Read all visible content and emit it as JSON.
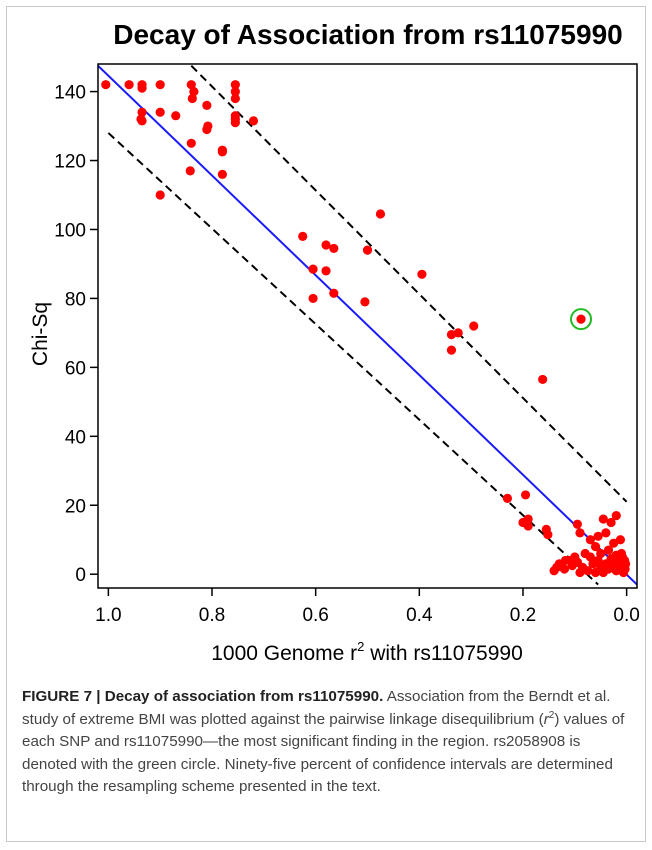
{
  "chart_data": {
    "type": "scatter",
    "title": "Decay of Association from rs11075990",
    "xlabel": "1000 Genome r",
    "xlabel_sup": "2",
    "xlabel_suffix": " with rs11075990",
    "ylabel": "Chi-Sq",
    "xlim": [
      1.02,
      -0.02
    ],
    "ylim": [
      -4,
      148
    ],
    "x_ticks": [
      1.0,
      0.8,
      0.6,
      0.4,
      0.2,
      0.0
    ],
    "x_tick_labels": [
      "1.0",
      "0.8",
      "0.6",
      "0.4",
      "0.2",
      "0.0"
    ],
    "y_ticks": [
      0,
      20,
      40,
      60,
      80,
      100,
      120,
      140
    ],
    "y_tick_labels": [
      "0",
      "20",
      "40",
      "60",
      "80",
      "100",
      "120",
      "140"
    ],
    "reference_line": {
      "x1": 1.02,
      "y1": 147.5,
      "x2": -0.02,
      "y2": -3,
      "color": "#1a1aff"
    },
    "ci_upper": {
      "x1": 0.84,
      "y1": 147.5,
      "x2": 0.0,
      "y2": 21,
      "color": "#000000"
    },
    "ci_lower": {
      "x1": 1.0,
      "y1": 128,
      "x2": 0.055,
      "y2": -3,
      "color": "#000000"
    },
    "highlight_point": {
      "x": 0.088,
      "y": 74,
      "ring_color": "#22bb22"
    },
    "point_color": "#ff0000",
    "points": [
      {
        "x": 1.005,
        "y": 142
      },
      {
        "x": 0.96,
        "y": 142
      },
      {
        "x": 0.935,
        "y": 142
      },
      {
        "x": 0.935,
        "y": 141
      },
      {
        "x": 0.9,
        "y": 142
      },
      {
        "x": 0.935,
        "y": 134
      },
      {
        "x": 0.935,
        "y": 131.5
      },
      {
        "x": 0.937,
        "y": 132
      },
      {
        "x": 0.9,
        "y": 134
      },
      {
        "x": 0.87,
        "y": 133
      },
      {
        "x": 0.84,
        "y": 142
      },
      {
        "x": 0.835,
        "y": 140
      },
      {
        "x": 0.838,
        "y": 138
      },
      {
        "x": 0.81,
        "y": 136
      },
      {
        "x": 0.808,
        "y": 130
      },
      {
        "x": 0.81,
        "y": 129
      },
      {
        "x": 0.84,
        "y": 125
      },
      {
        "x": 0.78,
        "y": 123
      },
      {
        "x": 0.78,
        "y": 122.5
      },
      {
        "x": 0.842,
        "y": 117
      },
      {
        "x": 0.78,
        "y": 116
      },
      {
        "x": 0.9,
        "y": 110
      },
      {
        "x": 0.755,
        "y": 142
      },
      {
        "x": 0.755,
        "y": 140
      },
      {
        "x": 0.755,
        "y": 138
      },
      {
        "x": 0.755,
        "y": 133
      },
      {
        "x": 0.755,
        "y": 131
      },
      {
        "x": 0.755,
        "y": 132
      },
      {
        "x": 0.72,
        "y": 131.5
      },
      {
        "x": 0.625,
        "y": 98
      },
      {
        "x": 0.58,
        "y": 95.5
      },
      {
        "x": 0.565,
        "y": 94.5
      },
      {
        "x": 0.5,
        "y": 94
      },
      {
        "x": 0.475,
        "y": 104.5
      },
      {
        "x": 0.605,
        "y": 88.5
      },
      {
        "x": 0.58,
        "y": 88
      },
      {
        "x": 0.605,
        "y": 80
      },
      {
        "x": 0.565,
        "y": 81.5
      },
      {
        "x": 0.505,
        "y": 79
      },
      {
        "x": 0.395,
        "y": 87
      },
      {
        "x": 0.338,
        "y": 69.5
      },
      {
        "x": 0.325,
        "y": 70
      },
      {
        "x": 0.295,
        "y": 72
      },
      {
        "x": 0.338,
        "y": 65
      },
      {
        "x": 0.162,
        "y": 56.5
      },
      {
        "x": 0.088,
        "y": 74
      },
      {
        "x": 0.23,
        "y": 22
      },
      {
        "x": 0.195,
        "y": 23
      },
      {
        "x": 0.2,
        "y": 15
      },
      {
        "x": 0.19,
        "y": 16
      },
      {
        "x": 0.19,
        "y": 14
      },
      {
        "x": 0.155,
        "y": 13
      },
      {
        "x": 0.152,
        "y": 11.5
      },
      {
        "x": 0.095,
        "y": 14.5
      },
      {
        "x": 0.09,
        "y": 12
      },
      {
        "x": 0.07,
        "y": 10
      },
      {
        "x": 0.055,
        "y": 11
      },
      {
        "x": 0.04,
        "y": 12
      },
      {
        "x": 0.03,
        "y": 15
      },
      {
        "x": 0.02,
        "y": 17
      },
      {
        "x": 0.045,
        "y": 16
      },
      {
        "x": 0.06,
        "y": 8
      },
      {
        "x": 0.025,
        "y": 9
      },
      {
        "x": 0.035,
        "y": 7
      },
      {
        "x": 0.012,
        "y": 10
      },
      {
        "x": 0.01,
        "y": 6
      },
      {
        "x": 0.08,
        "y": 6
      },
      {
        "x": 0.1,
        "y": 5
      },
      {
        "x": 0.11,
        "y": 4
      },
      {
        "x": 0.13,
        "y": 3
      },
      {
        "x": 0.135,
        "y": 2
      },
      {
        "x": 0.14,
        "y": 1
      },
      {
        "x": 0.12,
        "y": 1.5
      },
      {
        "x": 0.105,
        "y": 2.5
      },
      {
        "x": 0.095,
        "y": 3.5
      },
      {
        "x": 0.085,
        "y": 2
      },
      {
        "x": 0.075,
        "y": 1
      },
      {
        "x": 0.065,
        "y": 3
      },
      {
        "x": 0.055,
        "y": 4
      },
      {
        "x": 0.05,
        "y": 2
      },
      {
        "x": 0.045,
        "y": 0.5
      },
      {
        "x": 0.04,
        "y": 3
      },
      {
        "x": 0.035,
        "y": 1.5
      },
      {
        "x": 0.03,
        "y": 4.5
      },
      {
        "x": 0.025,
        "y": 2.5
      },
      {
        "x": 0.02,
        "y": 1
      },
      {
        "x": 0.015,
        "y": 3.5
      },
      {
        "x": 0.01,
        "y": 2
      },
      {
        "x": 0.006,
        "y": 0.5
      },
      {
        "x": 0.004,
        "y": 4
      },
      {
        "x": 0.003,
        "y": 1.5
      },
      {
        "x": 0.002,
        "y": 3
      },
      {
        "x": 0.118,
        "y": 4
      },
      {
        "x": 0.09,
        "y": 0.5
      },
      {
        "x": 0.07,
        "y": 5
      },
      {
        "x": 0.06,
        "y": 0.5
      },
      {
        "x": 0.02,
        "y": 5.5
      },
      {
        "x": 0.008,
        "y": 5
      },
      {
        "x": 0.05,
        "y": 6
      }
    ]
  },
  "caption": {
    "lead": "FIGURE 7 | Decay of association from rs11075990.",
    "body_1": " Association from the Berndt et al. study of extreme BMI was plotted against the pairwise linkage disequilibrium (",
    "r": "r",
    "sup": "2",
    "body_2": ") values of each SNP and rs11075990—the most significant finding in the region. rs2058908 is denoted with the green circle. Ninety-five percent of confidence intervals are determined through the resampling scheme presented in the text."
  }
}
